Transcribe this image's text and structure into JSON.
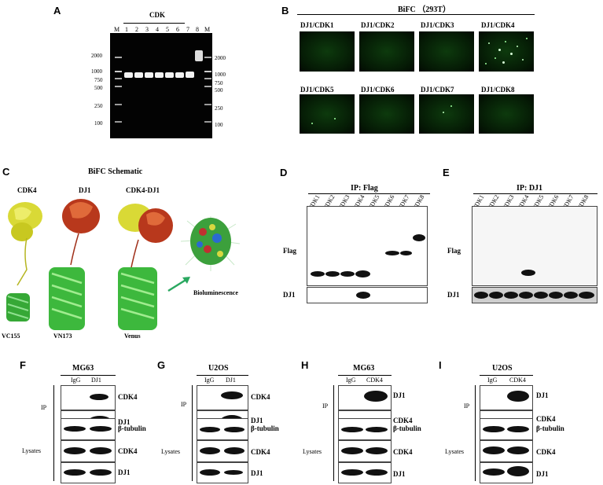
{
  "panels": {
    "A": {
      "label": "A",
      "title": "CDK",
      "lane_marker": "M",
      "lanes": [
        "1",
        "2",
        "3",
        "4",
        "5",
        "6",
        "7",
        "8"
      ],
      "left_ladder": [
        "2000",
        "1000",
        "750",
        "500",
        "250",
        "100"
      ],
      "right_ladder": [
        "2000",
        "1000",
        "750",
        "500",
        "250",
        "100"
      ]
    },
    "B": {
      "label": "B",
      "title": "BiFC （293T）",
      "images": [
        "DJ1/CDK1",
        "DJ1/CDK2",
        "DJ1/CDK3",
        "DJ1/CDK4",
        "DJ1/CDK5",
        "DJ1/CDK6",
        "DJ1/CDK7",
        "DJ1/CDK8"
      ]
    },
    "C": {
      "label": "C",
      "title": "BiFC Schematic",
      "top_labels": [
        "CDK4",
        "DJ1",
        "CDK4-DJ1"
      ],
      "bottom_labels": [
        "VC155",
        "VN173",
        "Venus"
      ],
      "result_label": "Bioluminescence"
    },
    "D": {
      "label": "D",
      "title": "IP: Flag",
      "lanes": [
        "CDK1",
        "CDK2",
        "CDK3",
        "CDK4",
        "CDK5",
        "CDK6",
        "CDK7",
        "CDK8"
      ],
      "row_labels": [
        "Flag",
        "DJ1"
      ]
    },
    "E": {
      "label": "E",
      "title": "IP: DJ1",
      "lanes": [
        "CDK1",
        "CDK2",
        "CDK3",
        "CDK4",
        "CDK5",
        "CDK6",
        "CDK7",
        "CDK8"
      ],
      "row_labels": [
        "Flag",
        "DJ1"
      ]
    },
    "F": {
      "label": "F",
      "cell": "MG63",
      "lanes": [
        "IgG",
        "DJ1"
      ],
      "ip_label": "IP",
      "lys_label": "Lysates",
      "ip_rows": [
        "CDK4",
        "DJ1"
      ],
      "lys_rows": [
        "β-tubulin",
        "CDK4",
        "DJ1"
      ]
    },
    "G": {
      "label": "G",
      "cell": "U2OS",
      "lanes": [
        "IgG",
        "DJ1"
      ],
      "ip_label": "IP",
      "lys_label": "Lysates",
      "ip_rows": [
        "CDK4",
        "DJ1"
      ],
      "lys_rows": [
        "β-tubulin",
        "CDK4",
        "DJ1"
      ]
    },
    "H": {
      "label": "H",
      "cell": "MG63",
      "lanes": [
        "IgG",
        "CDK4"
      ],
      "ip_label": "IP",
      "lys_label": "Lysates",
      "ip_rows": [
        "DJ1",
        "CDK4"
      ],
      "lys_rows": [
        "β-tubulin",
        "CDK4",
        "DJ1"
      ]
    },
    "I": {
      "label": "I",
      "cell": "U2OS",
      "lanes": [
        "IgG",
        "CDK4"
      ],
      "ip_label": "IP",
      "lys_label": "Lysates",
      "ip_rows": [
        "DJ1",
        "CDK4"
      ],
      "lys_rows": [
        "β-tubulin",
        "CDK4",
        "DJ1"
      ]
    }
  }
}
